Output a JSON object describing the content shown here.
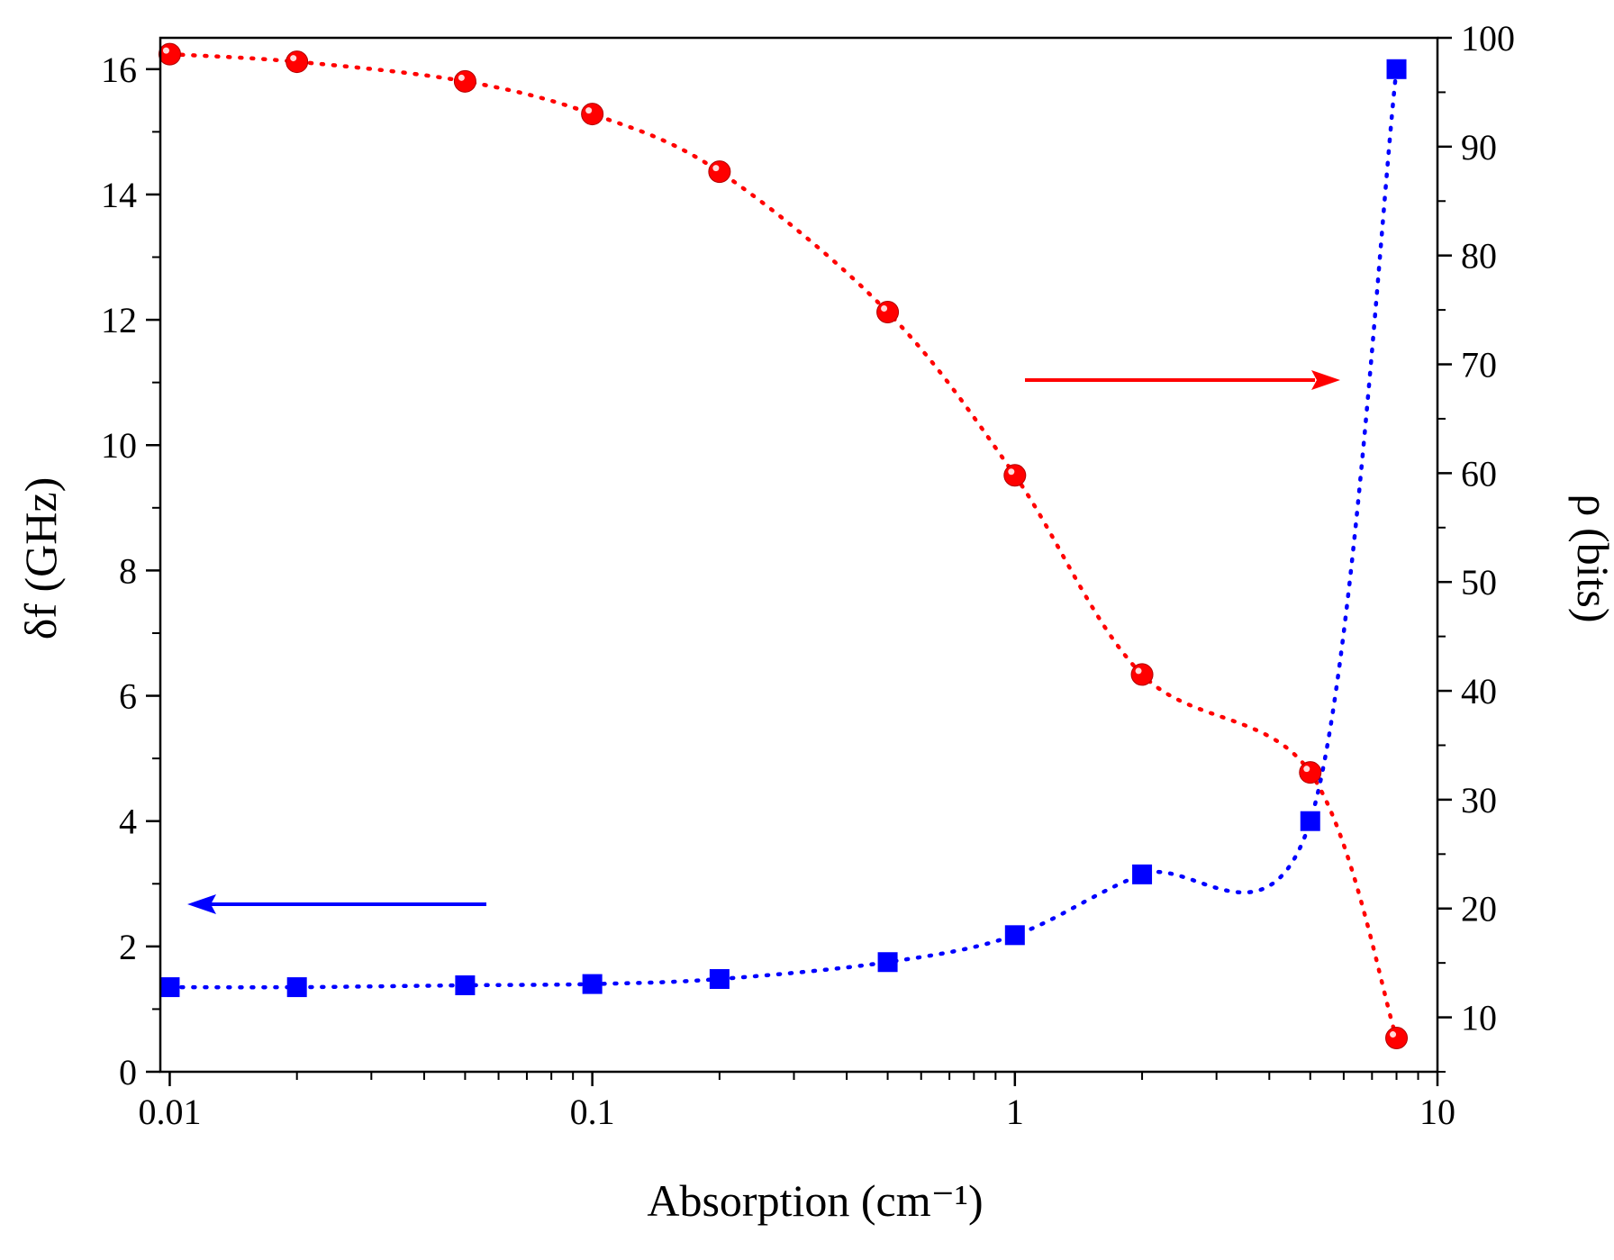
{
  "chart_data": {
    "type": "scatter",
    "title": "",
    "xlabel": "Absorption (cm⁻¹)",
    "ylabel_left": "δf (GHz)",
    "ylabel_right": "ρ (bits)",
    "xscale": "log",
    "xlim": [
      0.0095,
      10
    ],
    "ylim_left": [
      0,
      16.5
    ],
    "ylim_right": [
      5,
      100
    ],
    "x_ticks": [
      0.01,
      0.1,
      1,
      10
    ],
    "x_tick_labels": [
      "0.01",
      "0.1",
      "1",
      "10"
    ],
    "y_left_ticks": [
      0,
      2,
      4,
      6,
      8,
      10,
      12,
      14,
      16
    ],
    "y_left_tick_labels": [
      "0",
      "2",
      "4",
      "6",
      "8",
      "10",
      "12",
      "14",
      "16"
    ],
    "y_right_ticks": [
      10,
      20,
      30,
      40,
      50,
      60,
      70,
      80,
      90,
      100
    ],
    "y_right_tick_labels": [
      "10",
      "20",
      "30",
      "40",
      "50",
      "60",
      "70",
      "80",
      "90",
      "100"
    ],
    "series": [
      {
        "name": "δf",
        "axis": "left",
        "marker": "square",
        "color": "#0000ff",
        "line_style": "dotted",
        "x": [
          0.01,
          0.02,
          0.05,
          0.1,
          0.2,
          0.5,
          1,
          2,
          5,
          8
        ],
        "values": [
          1.35,
          1.35,
          1.38,
          1.4,
          1.48,
          1.75,
          2.18,
          3.15,
          4.0,
          16.0
        ]
      },
      {
        "name": "ρ",
        "axis": "right",
        "marker": "circle",
        "color": "#ff0000",
        "line_style": "dotted",
        "x": [
          0.01,
          0.02,
          0.05,
          0.1,
          0.2,
          0.5,
          1,
          2,
          5,
          8
        ],
        "values": [
          98.5,
          97.8,
          96.0,
          93.0,
          87.7,
          74.8,
          59.8,
          41.5,
          32.5,
          8.1
        ]
      }
    ],
    "annotations": [
      {
        "type": "arrow",
        "direction": "left",
        "color": "#0000ff",
        "points_to": "left axis"
      },
      {
        "type": "arrow",
        "direction": "right",
        "color": "#ff0000",
        "points_to": "right axis"
      }
    ]
  }
}
